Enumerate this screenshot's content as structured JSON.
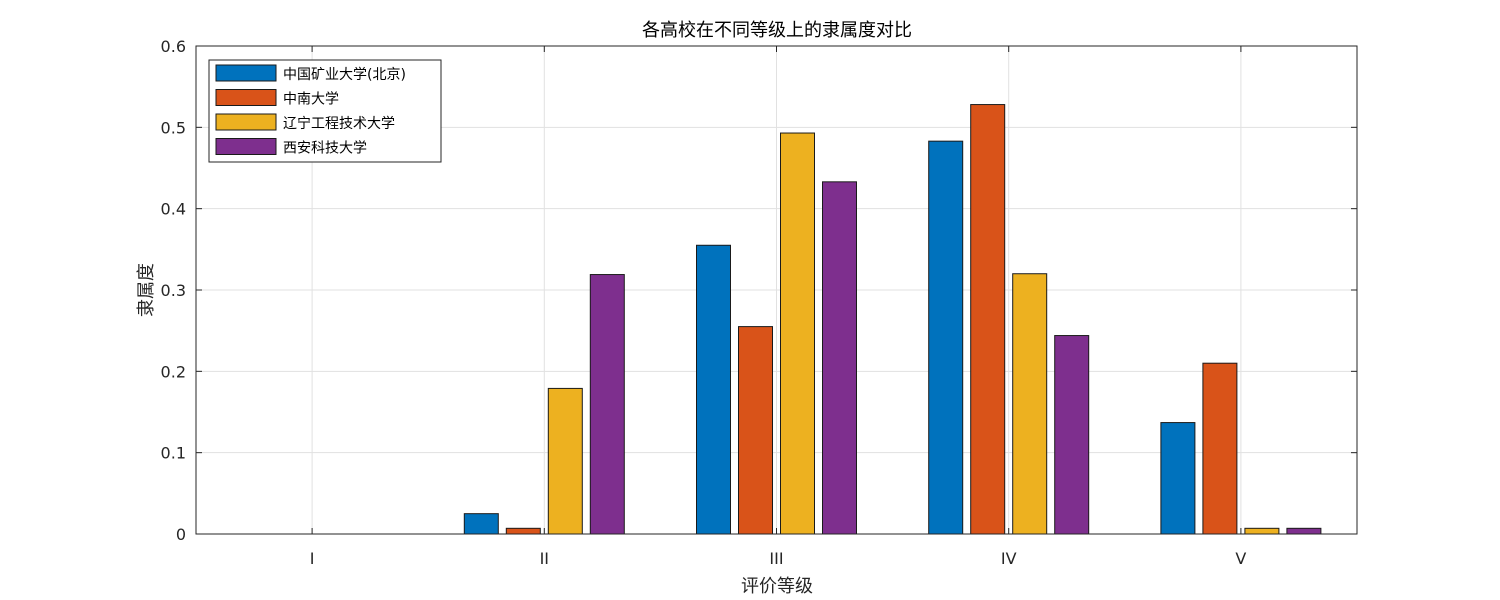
{
  "chart_data": {
    "type": "bar",
    "title": "各高校在不同等级上的隶属度对比",
    "xlabel": "评价等级",
    "ylabel": "隶属度",
    "categories": [
      "I",
      "II",
      "III",
      "IV",
      "V"
    ],
    "ylim": [
      0,
      0.6
    ],
    "yticks": [
      0,
      0.1,
      0.2,
      0.3,
      0.4,
      0.5,
      0.6
    ],
    "ytick_labels": [
      "0",
      "0.1",
      "0.2",
      "0.3",
      "0.4",
      "0.5",
      "0.6"
    ],
    "grid": true,
    "legend_position": "top-left",
    "series": [
      {
        "name": "中国矿业大学(北京)",
        "color": "#0072BD",
        "values": [
          0,
          0.025,
          0.355,
          0.483,
          0.137
        ]
      },
      {
        "name": "中南大学",
        "color": "#D95319",
        "values": [
          0,
          0.007,
          0.255,
          0.528,
          0.21
        ]
      },
      {
        "name": "辽宁工程技术大学",
        "color": "#EDB120",
        "values": [
          0,
          0.179,
          0.493,
          0.32,
          0.007
        ]
      },
      {
        "name": "西安科技大学",
        "color": "#7E2F8E",
        "values": [
          0,
          0.319,
          0.433,
          0.244,
          0.007
        ]
      }
    ]
  }
}
